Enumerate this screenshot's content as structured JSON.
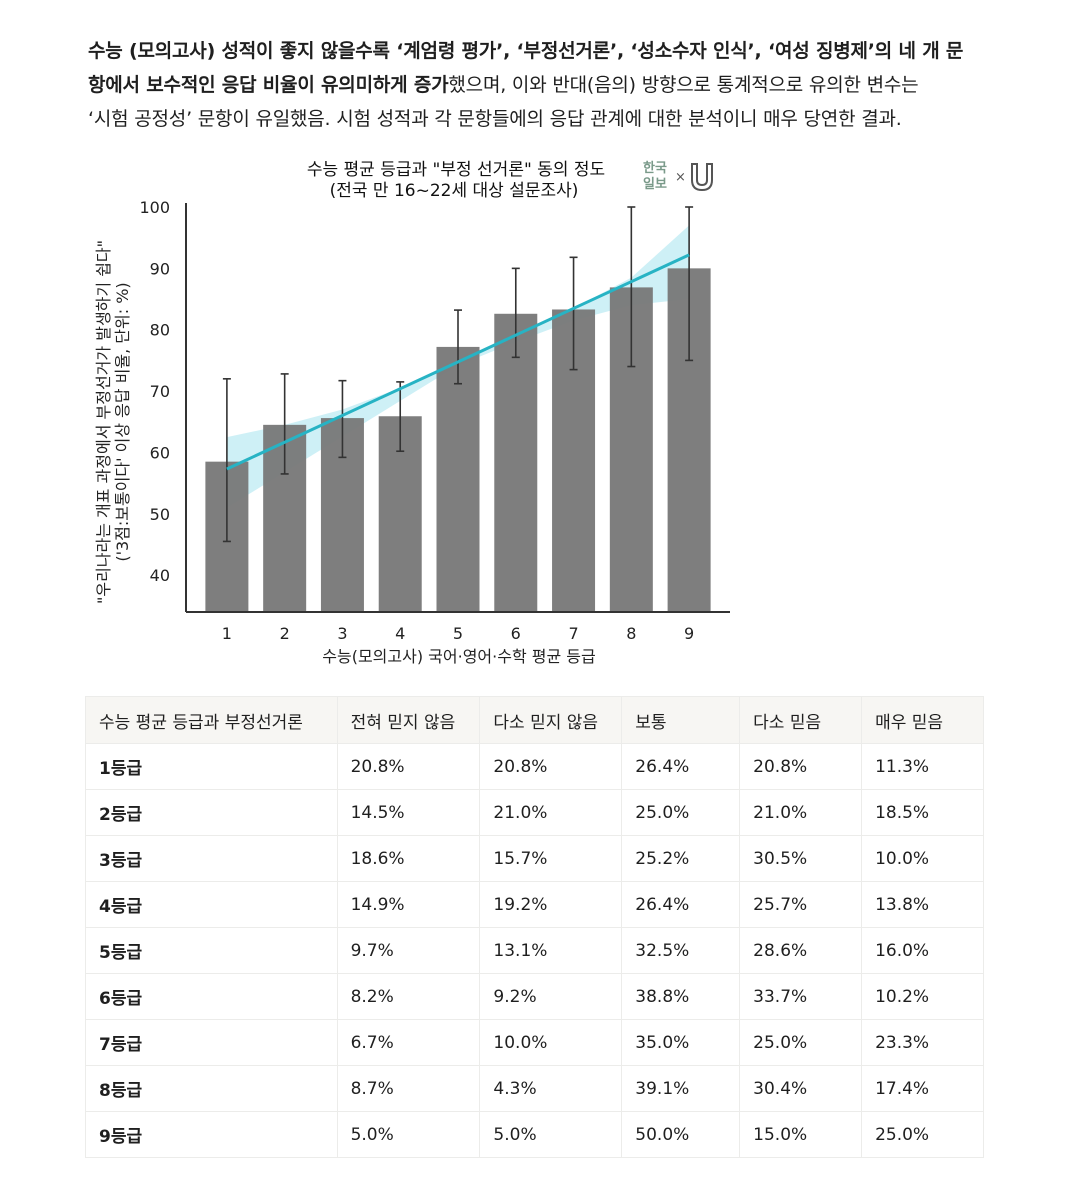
{
  "paragraph": {
    "line1": [
      {
        "text": "수능 (모의고사) 성적이 좋지 않을수록 ‘계엄령 평가’, ‘부정선거론’, ‘성소수자 인식’, ‘여성 징병제’의 네 개 문",
        "bold": true
      }
    ],
    "line2": [
      {
        "text": "항에서 보수적인 응답 비율이 유의미하게 증가",
        "bold": true
      },
      {
        "text": "했으며, 이와 반대(음의) 방향으로 통계적으로 유의한 변수는",
        "bold": false
      }
    ],
    "line3": [
      {
        "text": "‘시험 공정성’ 문항이 유일했음. 시험 성적과 각 문항들에의 응답 관계에 대한 분석이니 매우 당연한 결과.",
        "bold": false
      }
    ]
  },
  "chart_data": {
    "type": "bar",
    "title": "수능 평균 등급과 \"부정 선거론\" 동의 정도",
    "subtitle": "(전국 만 16~22세 대상 설문조사)",
    "xlabel": "수능(모의고사) 국어·영어·수학 평균 등급",
    "ylabel_line1": "\"우리나라는 개표 과정에서 부정선거가 발생하기 쉽다\"",
    "ylabel_line2": "('3점:보통이다' 이상 응답 비율, 단위: %)",
    "categories": [
      "1",
      "2",
      "3",
      "4",
      "5",
      "6",
      "7",
      "8",
      "9"
    ],
    "values": [
      58.5,
      64.5,
      65.6,
      65.9,
      77.2,
      82.6,
      83.3,
      86.9,
      90.0
    ],
    "error_low": [
      45.5,
      56.5,
      59.2,
      60.2,
      71.2,
      75.5,
      73.5,
      74.0,
      75.0
    ],
    "error_high": [
      72.0,
      72.8,
      71.7,
      71.5,
      83.2,
      90.0,
      91.8,
      100.0,
      100.0
    ],
    "trend": {
      "x_start": 1,
      "y_start": 57.3,
      "x_end": 9,
      "y_end": 92.2
    },
    "band_low": [
      51.0,
      56.8,
      62.6,
      68.4,
      74.2,
      78.0,
      81.5,
      84.0,
      85.0
    ],
    "band_high": [
      62.5,
      64.5,
      67.0,
      70.5,
      74.5,
      79.0,
      83.5,
      88.5,
      97.0
    ],
    "y_ticks": [
      "40",
      "50",
      "60",
      "70",
      "80",
      "90",
      "100"
    ],
    "ylim": [
      34,
      100
    ],
    "logo_text": [
      "한국",
      "일보",
      "×"
    ],
    "colors": {
      "bar": "#777777",
      "error": "#333333",
      "trend": "#27b3c4",
      "band": "#a6e3ef",
      "axis": "#333333"
    }
  },
  "table": {
    "headers": [
      "수능 평균 등급과 부정선거론",
      "전혀 믿지 않음",
      "다소 믿지 않음",
      "보통",
      "다소 믿음",
      "매우 믿음"
    ],
    "rows": [
      [
        "1등급",
        "20.8%",
        "20.8%",
        "26.4%",
        "20.8%",
        "11.3%"
      ],
      [
        "2등급",
        "14.5%",
        "21.0%",
        "25.0%",
        "21.0%",
        "18.5%"
      ],
      [
        "3등급",
        "18.6%",
        "15.7%",
        "25.2%",
        "30.5%",
        "10.0%"
      ],
      [
        "4등급",
        "14.9%",
        "19.2%",
        "26.4%",
        "25.7%",
        "13.8%"
      ],
      [
        "5등급",
        "9.7%",
        "13.1%",
        "32.5%",
        "28.6%",
        "16.0%"
      ],
      [
        "6등급",
        "8.2%",
        "9.2%",
        "38.8%",
        "33.7%",
        "10.2%"
      ],
      [
        "7등급",
        "6.7%",
        "10.0%",
        "35.0%",
        "25.0%",
        "23.3%"
      ],
      [
        "8등급",
        "8.7%",
        "4.3%",
        "39.1%",
        "30.4%",
        "17.4%"
      ],
      [
        "9등급",
        "5.0%",
        "5.0%",
        "50.0%",
        "15.0%",
        "25.0%"
      ]
    ]
  }
}
